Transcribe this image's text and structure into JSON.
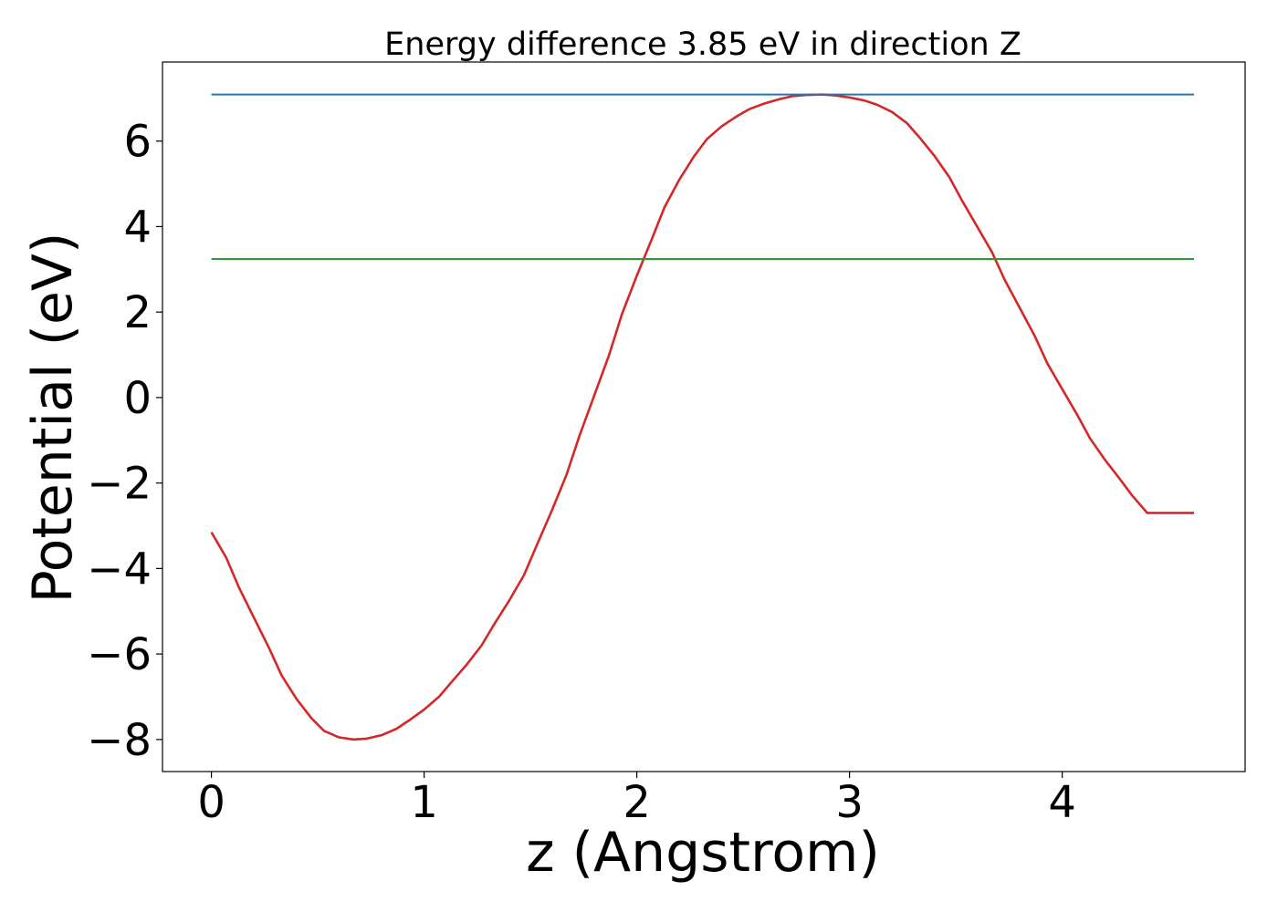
{
  "chart_data": {
    "type": "line",
    "title": "Energy difference 3.85 eV in direction Z",
    "xlabel": "z (Angstrom)",
    "ylabel": "Potential (eV)",
    "xlim": [
      -0.23,
      4.86
    ],
    "ylim": [
      -8.75,
      7.85
    ],
    "xticks": [
      0,
      1,
      2,
      3,
      4
    ],
    "xtick_labels": [
      "0",
      "1",
      "2",
      "3",
      "4"
    ],
    "yticks": [
      -8,
      -6,
      -4,
      -2,
      0,
      2,
      4,
      6
    ],
    "ytick_labels": [
      "−8",
      "−6",
      "−4",
      "−2",
      "0",
      "2",
      "4",
      "6"
    ],
    "grid": false,
    "legend": "none",
    "series": [
      {
        "color": "#d62728",
        "kind": "line",
        "x": [
          0.0,
          0.07,
          0.13,
          0.2,
          0.27,
          0.33,
          0.4,
          0.47,
          0.53,
          0.6,
          0.67,
          0.73,
          0.8,
          0.87,
          0.93,
          1.0,
          1.07,
          1.13,
          1.2,
          1.27,
          1.33,
          1.4,
          1.47,
          1.53,
          1.6,
          1.67,
          1.73,
          1.8,
          1.87,
          1.93,
          2.0,
          2.07,
          2.13,
          2.2,
          2.27,
          2.33,
          2.4,
          2.47,
          2.53,
          2.6,
          2.67,
          2.73,
          2.8,
          2.87,
          2.93,
          3.0,
          3.07,
          3.13,
          3.2,
          3.27,
          3.33,
          3.4,
          3.47,
          3.53,
          3.6,
          3.67,
          3.73,
          3.8,
          3.87,
          3.93,
          4.0,
          4.07,
          4.13,
          4.2,
          4.27,
          4.33,
          4.4,
          4.47,
          4.53,
          4.62
        ],
        "y": [
          -3.15,
          -3.75,
          -4.45,
          -5.15,
          -5.85,
          -6.5,
          -7.05,
          -7.5,
          -7.8,
          -7.95,
          -8.0,
          -7.98,
          -7.9,
          -7.75,
          -7.55,
          -7.3,
          -7.0,
          -6.65,
          -6.25,
          -5.8,
          -5.3,
          -4.75,
          -4.15,
          -3.45,
          -2.65,
          -1.8,
          -0.9,
          0.05,
          1.0,
          1.95,
          2.85,
          3.7,
          4.45,
          5.1,
          5.65,
          6.05,
          6.35,
          6.58,
          6.75,
          6.88,
          6.98,
          7.05,
          7.08,
          7.09,
          7.07,
          7.02,
          6.95,
          6.85,
          6.68,
          6.42,
          6.08,
          5.65,
          5.15,
          4.6,
          4.0,
          3.4,
          2.75,
          2.1,
          1.45,
          0.8,
          0.2,
          -0.4,
          -0.95,
          -1.45,
          -1.9,
          -2.3,
          -2.7,
          -2.7,
          -2.7,
          -2.7
        ]
      },
      {
        "color": "#1f77b4",
        "kind": "hline",
        "x": [
          0,
          4.62
        ],
        "y": [
          7.09,
          7.09
        ]
      },
      {
        "color": "#2ca02c",
        "kind": "hline",
        "x": [
          0,
          4.62
        ],
        "y": [
          3.24,
          3.24
        ]
      }
    ]
  }
}
